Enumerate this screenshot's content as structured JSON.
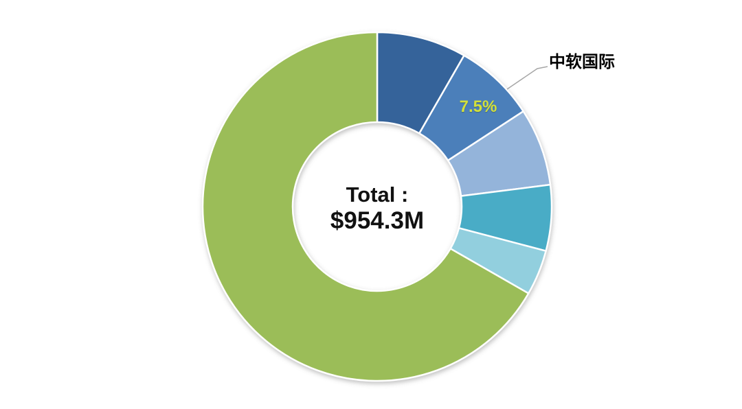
{
  "page": {
    "background_color": "#FFFFFF"
  },
  "chart_data": {
    "type": "pie",
    "subtype": "donut",
    "title": "",
    "legend_position": "none",
    "direction": "clockwise",
    "start_angle_deg": 0,
    "inner_radius_ratio": 0.485,
    "center_label": {
      "line1": "Total :",
      "line2": "$954.3M"
    },
    "total_value_text": "$954.3M",
    "slices": [
      {
        "label": "",
        "percent": 8.3,
        "color": "#35639A"
      },
      {
        "label": "中软国际",
        "percent": 7.5,
        "color": "#4C7FBA",
        "data_label": "7.5%",
        "data_label_color": "#D3E03B"
      },
      {
        "label": "",
        "percent": 7.2,
        "color": "#94B4DA"
      },
      {
        "label": "",
        "percent": 6.1,
        "color": "#4AACC6"
      },
      {
        "label": "",
        "percent": 4.2,
        "color": "#92CFDE"
      },
      {
        "label": "",
        "percent": 66.7,
        "color": "#9BBD58"
      }
    ],
    "annotations": {
      "callout_text": "中软国际",
      "callout_points_to": "7.5% slice",
      "slice_data_label": "7.5%"
    },
    "separator_color": "#FFFFFF",
    "leader_line_color": "#A6A6A6"
  }
}
